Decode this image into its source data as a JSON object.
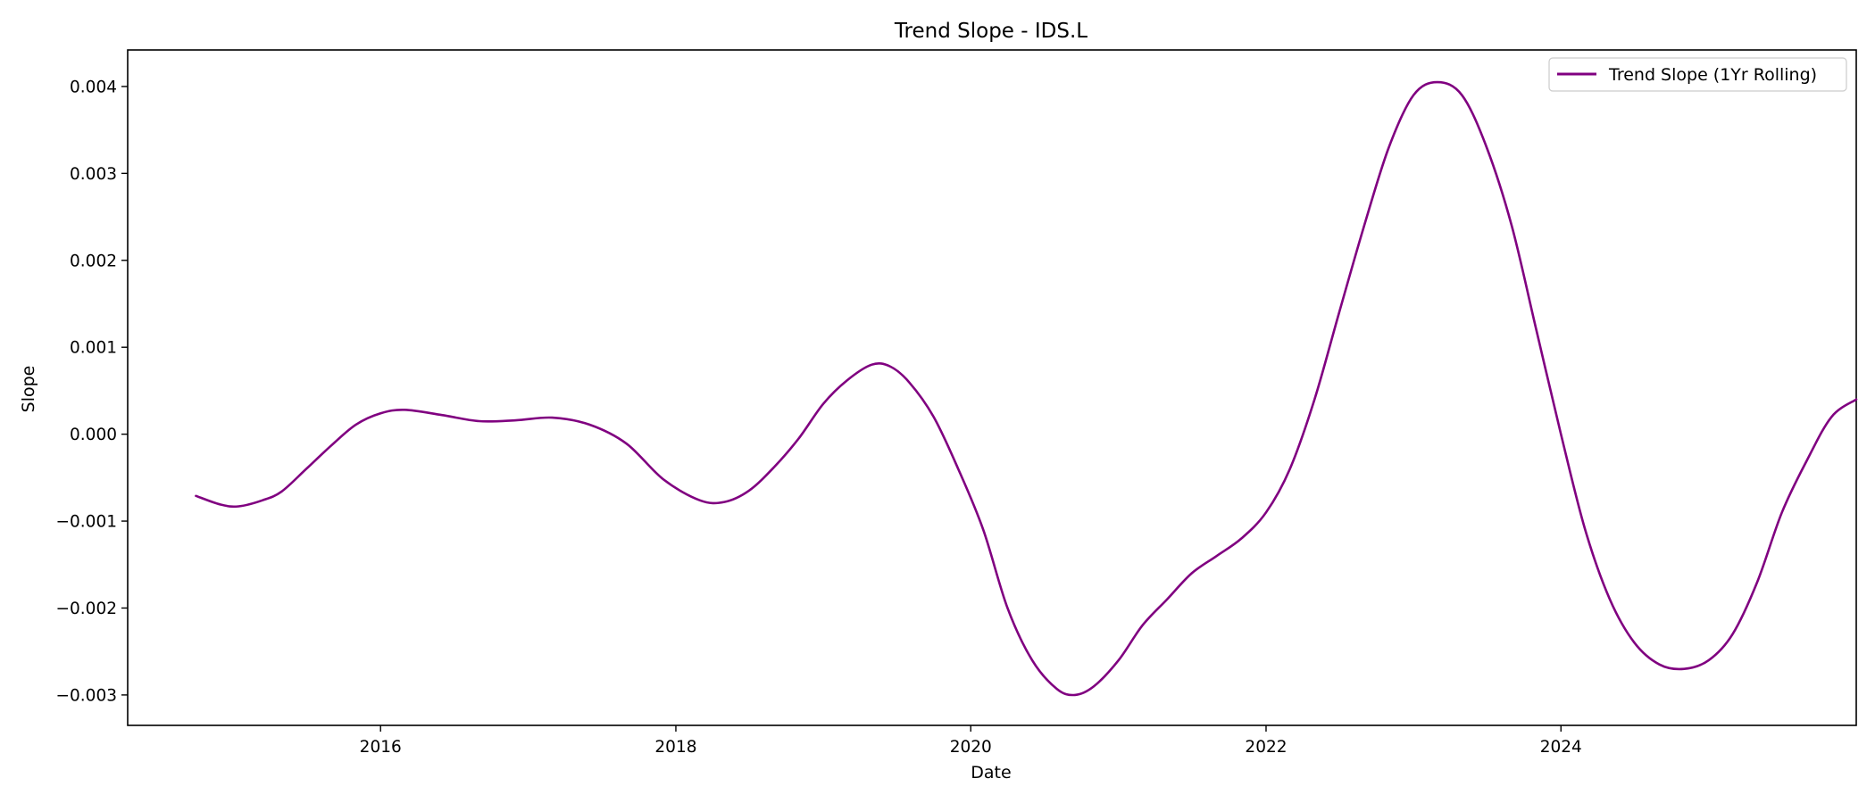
{
  "chart_data": {
    "type": "line",
    "title": "Trend Slope - IDS.L",
    "xlabel": "Date",
    "ylabel": "Slope",
    "xlim": [
      "2014-04-15",
      "2026-01-01"
    ],
    "ylim": [
      -0.00335,
      0.00442
    ],
    "grid": false,
    "legend_position": "top-right",
    "x_ticks": [
      {
        "label": "2016",
        "value": "2016-01-01"
      },
      {
        "label": "2018",
        "value": "2018-01-01"
      },
      {
        "label": "2020",
        "value": "2020-01-01"
      },
      {
        "label": "2022",
        "value": "2022-01-01"
      },
      {
        "label": "2024",
        "value": "2024-01-01"
      }
    ],
    "y_ticks": [
      {
        "label": "0.004",
        "value": 0.004
      },
      {
        "label": "0.003",
        "value": 0.003
      },
      {
        "label": "0.002",
        "value": 0.002
      },
      {
        "label": "0.001",
        "value": 0.001
      },
      {
        "label": "0.000",
        "value": 0.0
      },
      {
        "label": "−0.001",
        "value": -0.001
      },
      {
        "label": "−0.002",
        "value": -0.002
      },
      {
        "label": "−0.003",
        "value": -0.003
      }
    ],
    "series": [
      {
        "name": "Trend Slope (1Yr Rolling)",
        "color": "#800080",
        "points": [
          {
            "x": "2014-10-01",
            "y": -0.00071
          },
          {
            "x": "2014-12-01",
            "y": -0.00081
          },
          {
            "x": "2015-01-15",
            "y": -0.00083
          },
          {
            "x": "2015-03-15",
            "y": -0.00076
          },
          {
            "x": "2015-05-01",
            "y": -0.00066
          },
          {
            "x": "2015-07-01",
            "y": -0.0004
          },
          {
            "x": "2015-09-01",
            "y": -0.00013
          },
          {
            "x": "2015-11-01",
            "y": 0.00011
          },
          {
            "x": "2016-01-01",
            "y": 0.00024
          },
          {
            "x": "2016-03-01",
            "y": 0.00028
          },
          {
            "x": "2016-06-01",
            "y": 0.00022
          },
          {
            "x": "2016-09-01",
            "y": 0.00015
          },
          {
            "x": "2016-12-01",
            "y": 0.00016
          },
          {
            "x": "2017-03-01",
            "y": 0.00019
          },
          {
            "x": "2017-06-01",
            "y": 0.00011
          },
          {
            "x": "2017-09-01",
            "y": -0.00011
          },
          {
            "x": "2017-12-01",
            "y": -0.00052
          },
          {
            "x": "2018-03-01",
            "y": -0.00076
          },
          {
            "x": "2018-05-01",
            "y": -0.00078
          },
          {
            "x": "2018-07-01",
            "y": -0.00065
          },
          {
            "x": "2018-09-01",
            "y": -0.00038
          },
          {
            "x": "2018-11-01",
            "y": -5e-05
          },
          {
            "x": "2019-01-01",
            "y": 0.00035
          },
          {
            "x": "2019-03-01",
            "y": 0.00062
          },
          {
            "x": "2019-05-01",
            "y": 0.0008
          },
          {
            "x": "2019-06-15",
            "y": 0.00078
          },
          {
            "x": "2019-08-01",
            "y": 0.0006
          },
          {
            "x": "2019-10-01",
            "y": 0.0002
          },
          {
            "x": "2019-12-01",
            "y": -0.0004
          },
          {
            "x": "2020-02-01",
            "y": -0.0011
          },
          {
            "x": "2020-04-01",
            "y": -0.002
          },
          {
            "x": "2020-06-01",
            "y": -0.0026
          },
          {
            "x": "2020-08-01",
            "y": -0.00293
          },
          {
            "x": "2020-09-15",
            "y": -0.003
          },
          {
            "x": "2020-11-01",
            "y": -0.0029
          },
          {
            "x": "2021-01-01",
            "y": -0.0026
          },
          {
            "x": "2021-03-01",
            "y": -0.0022
          },
          {
            "x": "2021-05-01",
            "y": -0.0019
          },
          {
            "x": "2021-07-01",
            "y": -0.0016
          },
          {
            "x": "2021-09-01",
            "y": -0.0014
          },
          {
            "x": "2021-11-01",
            "y": -0.0012
          },
          {
            "x": "2022-01-01",
            "y": -0.0009
          },
          {
            "x": "2022-03-01",
            "y": -0.0004
          },
          {
            "x": "2022-05-01",
            "y": 0.0004
          },
          {
            "x": "2022-07-01",
            "y": 0.0014
          },
          {
            "x": "2022-09-01",
            "y": 0.0024
          },
          {
            "x": "2022-11-01",
            "y": 0.0033
          },
          {
            "x": "2023-01-01",
            "y": 0.0039
          },
          {
            "x": "2023-03-01",
            "y": 0.00405
          },
          {
            "x": "2023-05-01",
            "y": 0.0039
          },
          {
            "x": "2023-07-01",
            "y": 0.0033
          },
          {
            "x": "2023-09-01",
            "y": 0.0024
          },
          {
            "x": "2023-11-01",
            "y": 0.0012
          },
          {
            "x": "2024-01-01",
            "y": 0.0
          },
          {
            "x": "2024-03-01",
            "y": -0.0011
          },
          {
            "x": "2024-05-01",
            "y": -0.0019
          },
          {
            "x": "2024-07-01",
            "y": -0.0024
          },
          {
            "x": "2024-09-01",
            "y": -0.00265
          },
          {
            "x": "2024-11-01",
            "y": -0.0027
          },
          {
            "x": "2025-01-01",
            "y": -0.0026
          },
          {
            "x": "2025-03-01",
            "y": -0.0023
          },
          {
            "x": "2025-05-01",
            "y": -0.0017
          },
          {
            "x": "2025-07-01",
            "y": -0.0009
          },
          {
            "x": "2025-09-01",
            "y": -0.0003
          },
          {
            "x": "2025-11-01",
            "y": 0.0002
          },
          {
            "x": "2026-01-01",
            "y": 0.0004
          }
        ]
      }
    ]
  }
}
